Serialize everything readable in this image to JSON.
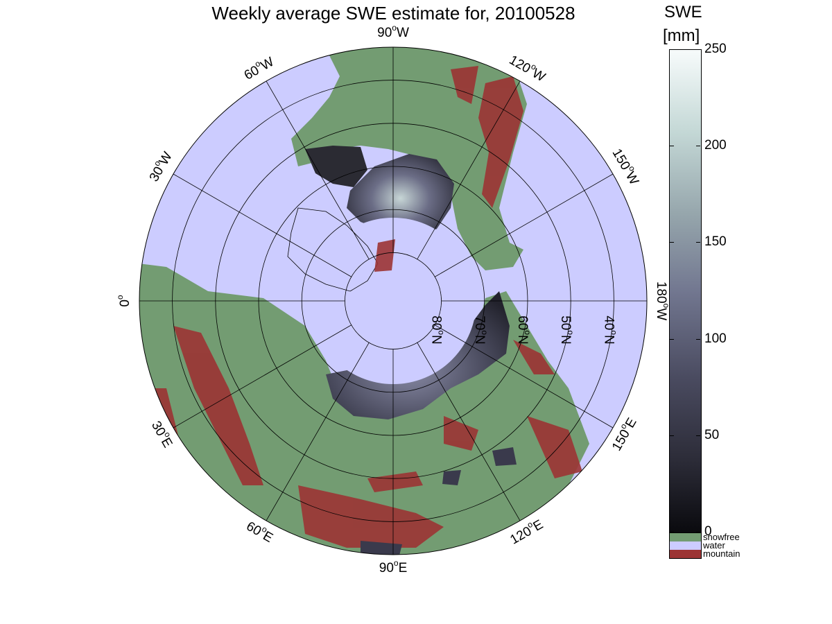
{
  "title": "Weekly average SWE estimate for, 20100528",
  "map": {
    "longitude_labels": [
      {
        "lon": "90",
        "hemi": "W"
      },
      {
        "lon": "120",
        "hemi": "W"
      },
      {
        "lon": "150",
        "hemi": "W"
      },
      {
        "lon": "180",
        "hemi": "W"
      },
      {
        "lon": "150",
        "hemi": "E"
      },
      {
        "lon": "120",
        "hemi": "E"
      },
      {
        "lon": "90",
        "hemi": "E"
      },
      {
        "lon": "60",
        "hemi": "E"
      },
      {
        "lon": "30",
        "hemi": "E"
      },
      {
        "lon": "0",
        "hemi": ""
      },
      {
        "lon": "30",
        "hemi": "W"
      },
      {
        "lon": "60",
        "hemi": "W"
      }
    ],
    "latitude_labels": [
      {
        "lat": "80",
        "hemi": "N"
      },
      {
        "lat": "70",
        "hemi": "N"
      },
      {
        "lat": "60",
        "hemi": "N"
      },
      {
        "lat": "50",
        "hemi": "N"
      },
      {
        "lat": "40",
        "hemi": "N"
      }
    ]
  },
  "colorbar": {
    "title": "SWE",
    "unit": "[mm]",
    "ticks": [
      "0",
      "50",
      "100",
      "150",
      "200",
      "250"
    ],
    "categories": [
      {
        "label": "snowfree",
        "color": "#739c72"
      },
      {
        "label": "water",
        "color": "#ccccff"
      },
      {
        "label": "mountain",
        "color": "#9c3434"
      }
    ]
  },
  "colors": {
    "water": "#ccccff",
    "land": "#739c72",
    "mountain": "#9c3434",
    "snow_low": "#1a1a24",
    "snow_high": "#f7fbfb"
  }
}
